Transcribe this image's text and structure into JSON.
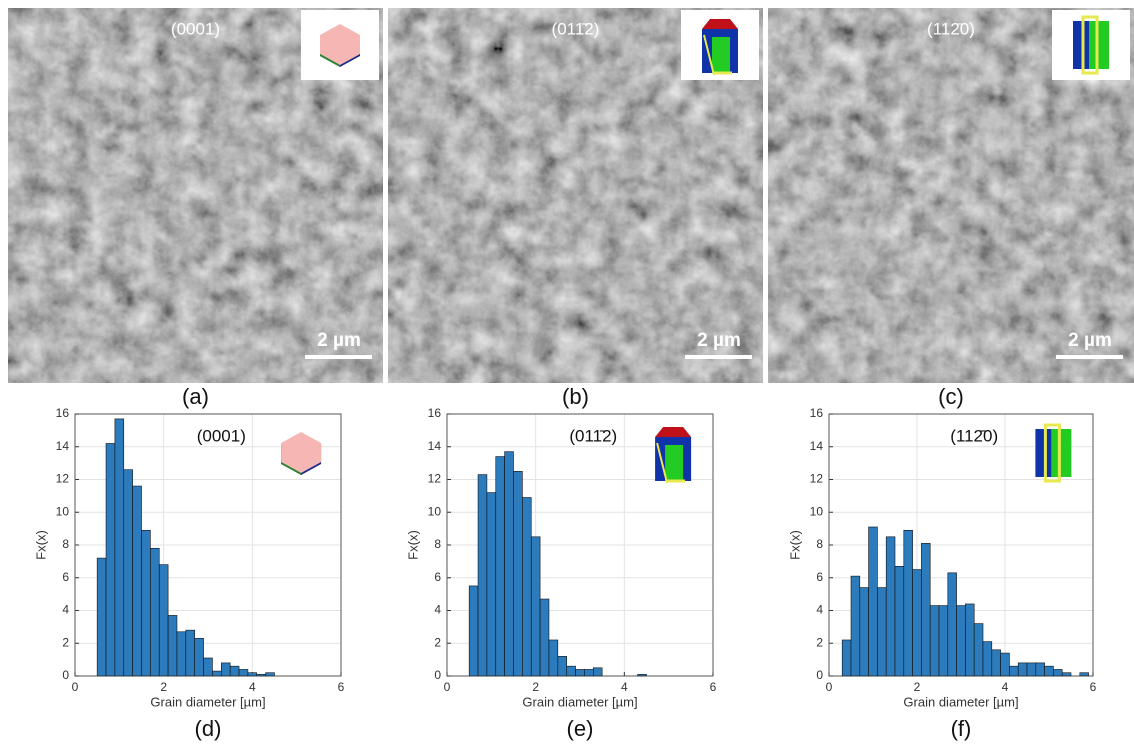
{
  "images": [
    {
      "label": "(0001)",
      "scale_bar": "2 µm",
      "panel_label": "(a)"
    },
    {
      "label": "(011̄2)",
      "scale_bar": "2 µm",
      "panel_label": "(b)"
    },
    {
      "label": "(112̄0)",
      "scale_bar": "2 µm",
      "panel_label": "(c)"
    }
  ],
  "chart_data": [
    {
      "type": "histogram",
      "annotation": "(0001)",
      "panel_label": "(d)",
      "xlabel": "Grain diameter [µm]",
      "ylabel": "Fx(x)",
      "color": "#2b7bbd",
      "grid": true,
      "xlim": [
        0,
        6
      ],
      "ylim": [
        0,
        16
      ],
      "xticks": [
        0,
        2,
        4,
        6
      ],
      "yticks": [
        0,
        2,
        4,
        6,
        8,
        10,
        12,
        14,
        16
      ],
      "bins": [
        0.5,
        0.7,
        0.9,
        1.1,
        1.3,
        1.5,
        1.7,
        1.9,
        2.1,
        2.3,
        2.5,
        2.7,
        2.9,
        3.1,
        3.3,
        3.5,
        3.7,
        3.9,
        4.1,
        4.3,
        4.5
      ],
      "values": [
        7.2,
        14.2,
        15.7,
        12.6,
        11.6,
        8.9,
        7.8,
        6.8,
        3.7,
        2.7,
        2.8,
        2.3,
        1.1,
        0.3,
        0.8,
        0.6,
        0.4,
        0.2,
        0.1,
        0.2
      ]
    },
    {
      "type": "histogram",
      "annotation": "(011̄2)",
      "panel_label": "(e)",
      "xlabel": "Grain diameter [µm]",
      "ylabel": "Fx(x)",
      "color": "#2b7bbd",
      "grid": true,
      "xlim": [
        0,
        6
      ],
      "ylim": [
        0,
        16
      ],
      "xticks": [
        0,
        2,
        4,
        6
      ],
      "yticks": [
        0,
        2,
        4,
        6,
        8,
        10,
        12,
        14,
        16
      ],
      "bins": [
        0.5,
        0.7,
        0.9,
        1.1,
        1.3,
        1.5,
        1.7,
        1.9,
        2.1,
        2.3,
        2.5,
        2.7,
        2.9,
        3.1,
        3.3,
        3.5,
        3.7,
        3.9,
        4.1,
        4.3,
        4.5
      ],
      "values": [
        5.5,
        12.3,
        11.2,
        13.4,
        13.7,
        12.5,
        10.9,
        8.5,
        4.7,
        2.2,
        1.2,
        0.6,
        0.4,
        0.4,
        0.5,
        0,
        0,
        0,
        0,
        0.1
      ]
    },
    {
      "type": "histogram",
      "annotation": "(112̄0)",
      "panel_label": "(f)",
      "xlabel": "Grain diameter [µm]",
      "ylabel": "Fx(x)",
      "color": "#2b7bbd",
      "grid": true,
      "xlim": [
        0,
        6
      ],
      "ylim": [
        0,
        16
      ],
      "xticks": [
        0,
        2,
        4,
        6
      ],
      "yticks": [
        0,
        2,
        4,
        6,
        8,
        10,
        12,
        14,
        16
      ],
      "bins": [
        0.3,
        0.5,
        0.7,
        0.9,
        1.1,
        1.3,
        1.5,
        1.7,
        1.9,
        2.1,
        2.3,
        2.5,
        2.7,
        2.9,
        3.1,
        3.3,
        3.5,
        3.7,
        3.9,
        4.1,
        4.3,
        4.5,
        4.7,
        4.9,
        5.1,
        5.3,
        5.5,
        5.7,
        5.9
      ],
      "values": [
        2.2,
        6.1,
        5.4,
        9.1,
        5.4,
        8.5,
        6.7,
        8.9,
        6.5,
        8.1,
        4.3,
        4.3,
        6.3,
        4.3,
        4.4,
        3.2,
        2.1,
        1.6,
        1.4,
        0.6,
        0.8,
        0.8,
        0.8,
        0.6,
        0.4,
        0.2,
        0,
        0.2
      ]
    }
  ]
}
